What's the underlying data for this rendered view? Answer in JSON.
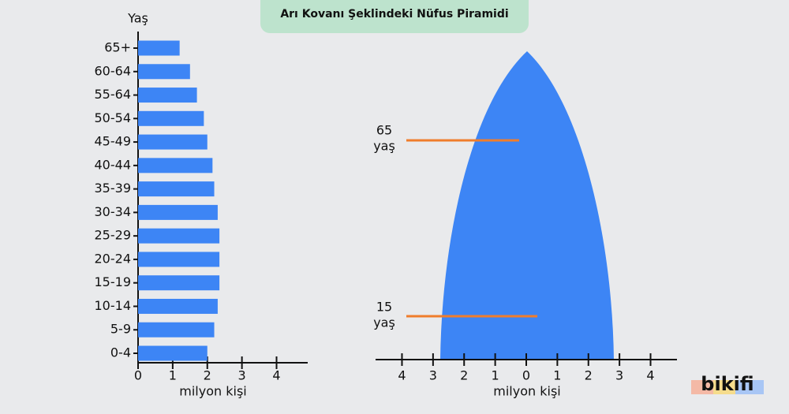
{
  "title": "Arı Kovanı Şeklindeki Nüfus Piramidi",
  "logo": "bikifi",
  "chart_data": [
    {
      "type": "barh",
      "ylabel": "Yaş",
      "xlabel": "milyon kişi",
      "categories": [
        "0-4",
        "5-9",
        "10-14",
        "15-19",
        "20-24",
        "25-29",
        "30-34",
        "35-39",
        "40-44",
        "45-49",
        "50-54",
        "55-64",
        "60-64",
        "65+"
      ],
      "values": [
        2.0,
        2.2,
        2.3,
        2.35,
        2.35,
        2.35,
        2.3,
        2.2,
        2.15,
        2.0,
        1.9,
        1.7,
        1.5,
        1.2
      ],
      "color": "#3d85f5",
      "xlim": [
        0,
        4.9
      ],
      "xticks": [
        0,
        1,
        2,
        3,
        4
      ]
    },
    {
      "type": "shape",
      "xlabel": "milyon kişi",
      "color": "#3d85f5",
      "xlim": [
        -4.85,
        4.85
      ],
      "xticks": [
        {
          "value": -4,
          "label": "4"
        },
        {
          "value": -3,
          "label": "3"
        },
        {
          "value": -2,
          "label": "2"
        },
        {
          "value": -1,
          "label": "1"
        },
        0,
        1,
        2,
        3,
        4
      ],
      "annotations": [
        [
          "65",
          "yaş"
        ],
        [
          "15",
          "yaş"
        ]
      ]
    }
  ]
}
